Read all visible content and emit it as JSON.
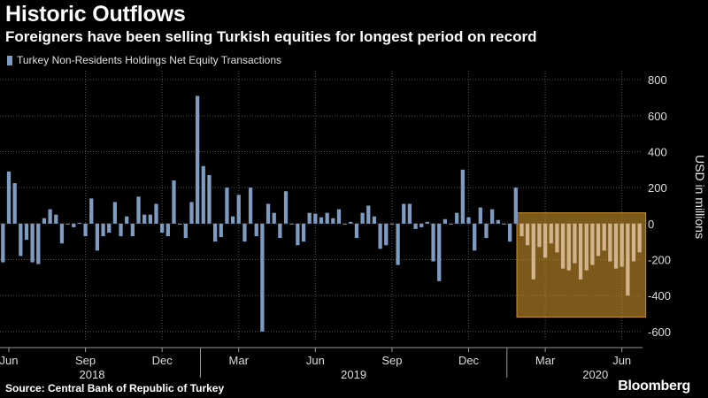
{
  "header": {
    "title": "Historic Outflows",
    "subtitle": "Foreigners have been selling Turkish equities for longest period on record"
  },
  "footer": {
    "source": "Source: Central Bank of Republic of Turkey",
    "brand": "Bloomberg"
  },
  "colors": {
    "background": "#000000",
    "bar": "#7e9bc2",
    "highlight_bar": "#d1b48c",
    "highlight_box": "#c8902a",
    "grid": "#555555"
  },
  "chart_data": {
    "type": "bar",
    "frequency": "weekly",
    "legend": [
      "Turkey Non-Residents Holdings Net Equity Transactions"
    ],
    "ylabel": "USD in millions",
    "ylim": [
      -650,
      850
    ],
    "yticks": [
      800,
      600,
      400,
      200,
      0,
      -200,
      -400,
      -600
    ],
    "grid": true,
    "x_tick_labels": [
      "Jun",
      "Sep",
      "Dec",
      "Mar",
      "Jun",
      "Sep",
      "Dec",
      "Mar",
      "Jun"
    ],
    "x_year_labels": [
      "2018",
      "2019",
      "2020"
    ],
    "series": [
      {
        "name": "Turkey Non-Residents Holdings Net Equity Transactions",
        "values": [
          -215,
          290,
          225,
          -180,
          -90,
          -215,
          -225,
          30,
          80,
          50,
          -110,
          0,
          -20,
          5,
          -70,
          140,
          -150,
          -70,
          -50,
          120,
          -70,
          40,
          -70,
          150,
          50,
          50,
          110,
          -50,
          -70,
          240,
          0,
          -80,
          120,
          710,
          320,
          270,
          -100,
          -75,
          200,
          40,
          160,
          -100,
          200,
          -70,
          -600,
          110,
          60,
          -80,
          180,
          0,
          -120,
          -100,
          60,
          55,
          35,
          60,
          30,
          80,
          0,
          10,
          -80,
          60,
          100,
          40,
          -140,
          -120,
          0,
          -230,
          110,
          110,
          -30,
          -20,
          10,
          -210,
          -320,
          25,
          0,
          60,
          300,
          35,
          -150,
          90,
          -80,
          80,
          20,
          0,
          -100,
          200,
          -70,
          -120,
          -310,
          -130,
          -190,
          -110,
          -160,
          -250,
          -260,
          -220,
          -310,
          -260,
          -230,
          -180,
          -150,
          -210,
          -250,
          -240,
          -400,
          -210,
          -160
        ]
      }
    ],
    "highlight": {
      "from_index": 88,
      "to_index": 108,
      "ymin": -520,
      "ymax": 60
    }
  }
}
